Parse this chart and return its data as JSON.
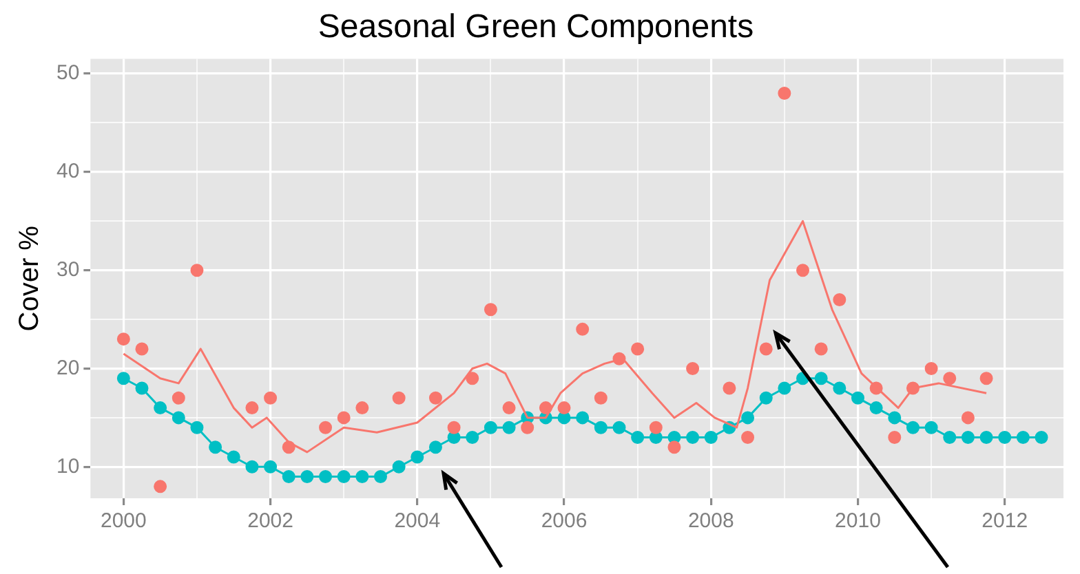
{
  "chart_data": {
    "type": "scatter",
    "title": "Seasonal Green Components",
    "ylabel": "Cover %",
    "xlim": [
      1999.55,
      2012.8
    ],
    "ylim": [
      6.8,
      51.5
    ],
    "xticks": [
      2000,
      {
        "value": 2001,
        "label": null
      },
      2002,
      {
        "value": 2003,
        "label": null
      },
      2004,
      {
        "value": 2005,
        "label": null
      },
      2006,
      {
        "value": 2007,
        "label": null
      },
      2008,
      {
        "value": 2009,
        "label": null
      },
      2010,
      {
        "value": 2011,
        "label": null
      },
      2012
    ],
    "yticks": [
      10,
      {
        "value": 15,
        "label": null
      },
      20,
      {
        "value": 25,
        "label": null
      },
      30,
      {
        "value": 35,
        "label": null
      },
      40,
      {
        "value": 45,
        "label": null
      },
      50
    ],
    "grid": true,
    "legend": false,
    "series": [
      {
        "type": "line",
        "color": "#f8766d",
        "marker": "none",
        "x": [
          2000,
          2000.5,
          2000.75,
          2001.05,
          2001.5,
          2001.75,
          2001.95,
          2002.25,
          2002.5,
          2003,
          2003.45,
          2004,
          2004.5,
          2004.75,
          2004.95,
          2005.2,
          2005.5,
          2005.75,
          2005.95,
          2006.25,
          2006.55,
          2006.8,
          2007.2,
          2007.5,
          2007.8,
          2008.05,
          2008.35,
          2008.5,
          2008.8,
          2009.25,
          2009.65,
          2010.05,
          2010.55,
          2010.75,
          2011.1,
          2011.75
        ],
        "values": [
          21.5,
          19,
          18.5,
          22,
          16,
          14,
          15,
          12.5,
          11.5,
          14,
          13.5,
          14.5,
          17.5,
          20,
          20.5,
          19.5,
          15,
          15,
          17.5,
          19.5,
          20.5,
          21,
          17.5,
          15,
          16.5,
          15,
          14,
          18,
          29,
          35,
          26,
          19.5,
          16,
          18,
          18.5,
          17.5
        ]
      },
      {
        "type": "scatter",
        "color": "#f8766d",
        "marker": "circle",
        "x": [
          2000,
          2000.25,
          2000.5,
          2000.75,
          2001,
          2001.75,
          2002,
          2002.25,
          2002.75,
          2003,
          2003.25,
          2003.75,
          2004.25,
          2004.5,
          2004.75,
          2005,
          2005.25,
          2005.5,
          2005.75,
          2006,
          2006.25,
          2006.5,
          2006.75,
          2007,
          2007.25,
          2007.5,
          2007.75,
          2008.25,
          2008.5,
          2008.75,
          2009,
          2009.25,
          2009.5,
          2009.75,
          2010.25,
          2010.5,
          2010.75,
          2011,
          2011.25,
          2011.5,
          2011.75
        ],
        "values": [
          23,
          22,
          8,
          17,
          30,
          16,
          17,
          12,
          14,
          15,
          16,
          17,
          17,
          14,
          19,
          26,
          16,
          14,
          16,
          16,
          24,
          17,
          21,
          22,
          14,
          12,
          20,
          18,
          13,
          22,
          48,
          30,
          22,
          27,
          18,
          13,
          18,
          20,
          19,
          15,
          19
        ]
      },
      {
        "type": "line",
        "color": "#00bfc4",
        "marker": "circle",
        "x": [
          2000,
          2000.25,
          2000.5,
          2000.75,
          2001,
          2001.25,
          2001.5,
          2001.75,
          2002,
          2002.25,
          2002.5,
          2002.75,
          2003,
          2003.25,
          2003.5,
          2003.75,
          2004,
          2004.25,
          2004.5,
          2004.75,
          2005,
          2005.25,
          2005.5,
          2005.75,
          2006,
          2006.25,
          2006.5,
          2006.75,
          2007,
          2007.25,
          2007.5,
          2007.75,
          2008,
          2008.25,
          2008.5,
          2008.75,
          2009,
          2009.25,
          2009.5,
          2009.75,
          2010,
          2010.25,
          2010.5,
          2010.75,
          2011,
          2011.25,
          2011.5,
          2011.75,
          2012,
          2012.25,
          2012.5
        ],
        "values": [
          19,
          18,
          16,
          15,
          14,
          12,
          11,
          10,
          10,
          9,
          9,
          9,
          9,
          9,
          9,
          10,
          11,
          12,
          13,
          13,
          14,
          14,
          15,
          15,
          15,
          15,
          14,
          14,
          13,
          13,
          13,
          13,
          13,
          14,
          15,
          17,
          18,
          19,
          19,
          18,
          17,
          16,
          15,
          14,
          14,
          13,
          13,
          13,
          13,
          13,
          13
        ]
      }
    ]
  }
}
